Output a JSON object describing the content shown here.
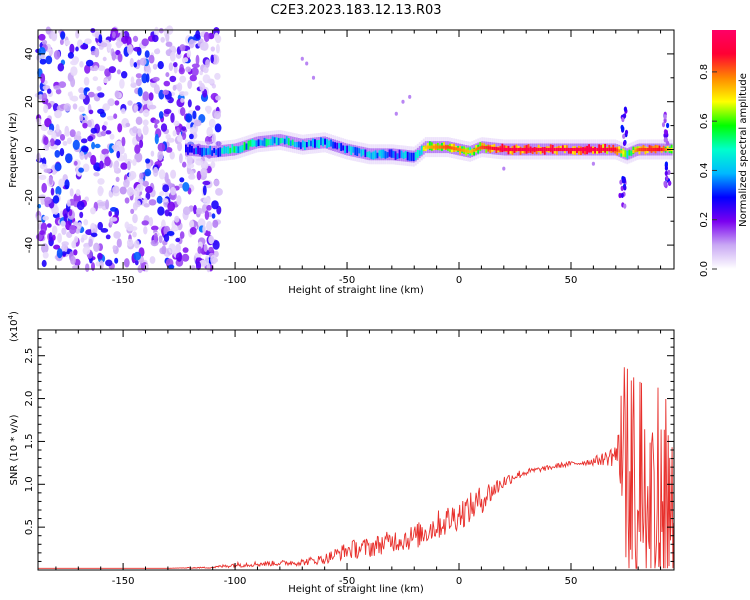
{
  "page": {
    "title": "C2E3.2023.183.12.13.R03"
  },
  "colorbar": {
    "label": "Normalized spectral amplitude",
    "ticks": [
      "0.0",
      "0.2",
      "0.4",
      "0.6",
      "0.8"
    ],
    "tick_values": [
      0.0,
      0.2,
      0.4,
      0.6,
      0.8
    ],
    "range": [
      0,
      0.97
    ],
    "colormap": [
      "#ffffff",
      "#c9a8f4",
      "#7a00f0",
      "#0000ff",
      "#00b8ff",
      "#00ffcc",
      "#00ff00",
      "#ffff00",
      "#ff8800",
      "#ff0033",
      "#ff0066"
    ]
  },
  "chart_data": [
    {
      "type": "heatmap",
      "title": "",
      "xlabel": "Height of straight line (km)",
      "ylabel": "Frequency (Hz)",
      "xlim": [
        -188,
        96
      ],
      "ylim": [
        -50,
        50
      ],
      "x_ticks": [
        -150,
        -100,
        -50,
        0,
        50
      ],
      "x_tick_labels": [
        "-150",
        "-100",
        "-50",
        "0",
        "50"
      ],
      "y_ticks": [
        -40,
        -20,
        0,
        20,
        40
      ],
      "y_tick_labels": [
        "-40",
        "-20",
        "0",
        "20",
        "40"
      ],
      "grid": false,
      "noise_region_x": [
        -188,
        -121
      ],
      "ridge": {
        "x": [
          -122,
          -110,
          -100,
          -90,
          -80,
          -70,
          -60,
          -50,
          -40,
          -30,
          -20,
          -15,
          -5,
          0,
          5,
          10,
          20,
          40,
          60,
          70,
          75,
          80,
          90,
          95
        ],
        "freq": [
          0,
          -1,
          0,
          3,
          4,
          2,
          3,
          0,
          -2,
          -2,
          -3,
          1,
          1,
          0,
          -1,
          1,
          0,
          0,
          0,
          0,
          -2,
          0,
          0,
          0
        ],
        "amplitude": [
          0.35,
          0.5,
          0.6,
          0.55,
          0.6,
          0.55,
          0.5,
          0.45,
          0.5,
          0.45,
          0.55,
          0.75,
          0.85,
          0.8,
          0.75,
          0.85,
          0.95,
          0.95,
          0.95,
          0.9,
          0.6,
          0.85,
          0.9,
          0.7
        ]
      }
    },
    {
      "type": "line",
      "title": "",
      "xlabel": "Height of straight line (km)",
      "ylabel": "SNR (10 * v/v)",
      "y_multiplier": "(x10",
      "y_multiplier_exp": "4",
      "y_multiplier_close": ")",
      "xlim": [
        -188,
        96
      ],
      "ylim": [
        0,
        2.8
      ],
      "x_ticks": [
        -150,
        -100,
        -50,
        0,
        50
      ],
      "x_tick_labels": [
        "-150",
        "-100",
        "-50",
        "0",
        "50"
      ],
      "y_ticks": [
        0.5,
        1.0,
        1.5,
        2.0,
        2.5
      ],
      "y_tick_labels": [
        "0.5",
        "1.0",
        "1.5",
        "2.0",
        "2.5"
      ],
      "grid": false,
      "series": [
        {
          "color": "#e8302c",
          "x": [
            -188,
            -160,
            -130,
            -110,
            -100,
            -90,
            -80,
            -70,
            -60,
            -55,
            -50,
            -45,
            -40,
            -35,
            -30,
            -25,
            -20,
            -15,
            -10,
            -5,
            0,
            5,
            10,
            15,
            20,
            25,
            30,
            35,
            40,
            45,
            50,
            55,
            60,
            65,
            70,
            75,
            80,
            85,
            90,
            95
          ],
          "mean": [
            0.02,
            0.02,
            0.02,
            0.03,
            0.06,
            0.07,
            0.08,
            0.09,
            0.13,
            0.18,
            0.23,
            0.25,
            0.26,
            0.3,
            0.34,
            0.36,
            0.38,
            0.45,
            0.52,
            0.58,
            0.65,
            0.72,
            0.82,
            0.93,
            1.03,
            1.1,
            1.14,
            1.17,
            1.19,
            1.22,
            1.24,
            1.25,
            1.27,
            1.3,
            1.35,
            1.3,
            1.0,
            0.95,
            0.9,
            0.9
          ],
          "spread": [
            0.0,
            0.0,
            0.0,
            0.01,
            0.03,
            0.03,
            0.03,
            0.04,
            0.06,
            0.08,
            0.1,
            0.12,
            0.12,
            0.12,
            0.13,
            0.14,
            0.15,
            0.16,
            0.17,
            0.18,
            0.18,
            0.18,
            0.17,
            0.13,
            0.08,
            0.06,
            0.04,
            0.03,
            0.03,
            0.03,
            0.03,
            0.03,
            0.05,
            0.08,
            0.15,
            0.85,
            0.8,
            0.8,
            0.8,
            0.8
          ]
        }
      ]
    }
  ]
}
